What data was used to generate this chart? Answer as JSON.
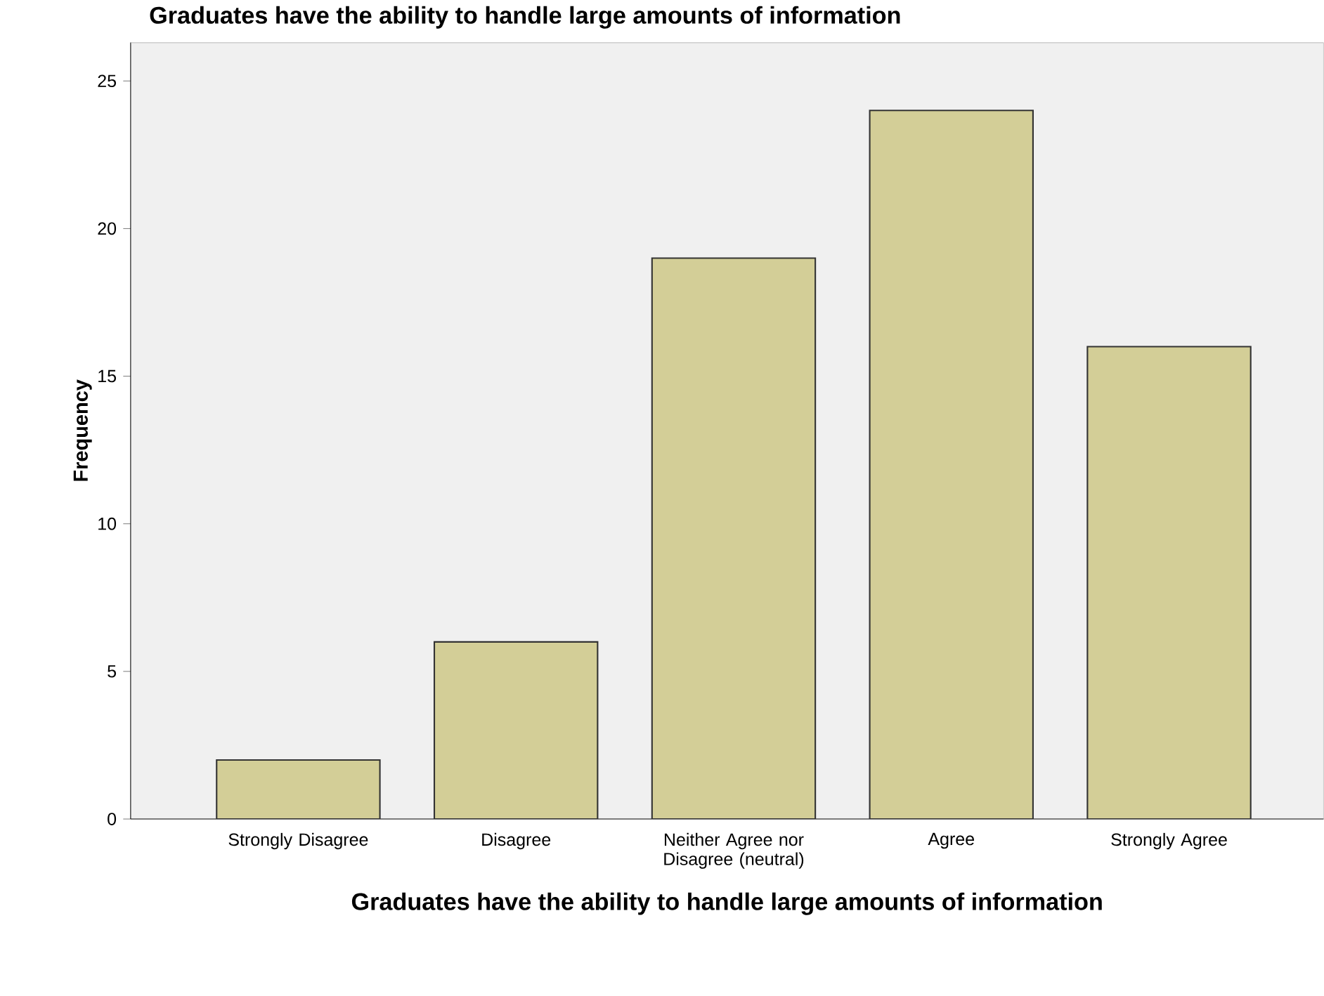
{
  "chart_data": {
    "type": "bar",
    "title": "Graduates have the ability to handle large amounts of information",
    "xlabel": "Graduates have the ability to handle large amounts of information",
    "ylabel": "Frequency",
    "categories": [
      "Strongly Disagree",
      "Disagree",
      "Neither Agree nor Disagree (neutral)",
      "Agree",
      "Strongly Agree"
    ],
    "values": [
      2,
      6,
      19,
      24,
      16
    ],
    "color": "#d3ce97",
    "ylim": [
      0,
      26.3
    ],
    "yticks": [
      0,
      5,
      10,
      15,
      20,
      25
    ],
    "grid": false
  }
}
